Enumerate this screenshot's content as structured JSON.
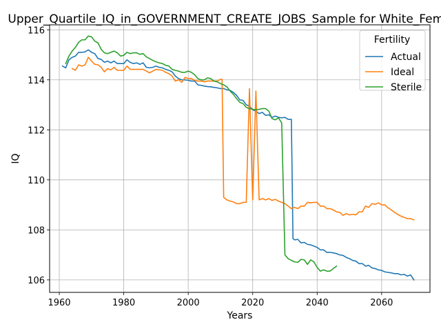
{
  "chart_data": {
    "type": "line",
    "title": "Upper_Quartile_IQ_in_GOVERNMENT_CREATE_JOBS_Sample for White_Females",
    "xlabel": "Years",
    "ylabel": "IQ",
    "xlim": [
      1957,
      2075
    ],
    "ylim": [
      105.5,
      116.2
    ],
    "xticks": [
      1960,
      1980,
      2000,
      2020,
      2040,
      2060
    ],
    "yticks": [
      106,
      108,
      110,
      112,
      114,
      116
    ],
    "grid": true,
    "legend": {
      "title": "Fertility",
      "position": "top-right"
    },
    "series": [
      {
        "name": "Actual",
        "color": "#1f77b4",
        "points": [
          [
            1961,
            114.55
          ],
          [
            1962,
            114.48
          ],
          [
            1963,
            114.8
          ],
          [
            1964,
            114.9
          ],
          [
            1965,
            114.95
          ],
          [
            1966,
            115.1
          ],
          [
            1967,
            115.1
          ],
          [
            1968,
            115.12
          ],
          [
            1969,
            115.2
          ],
          [
            1970,
            115.1
          ],
          [
            1971,
            115.05
          ],
          [
            1972,
            114.85
          ],
          [
            1973,
            114.82
          ],
          [
            1974,
            114.7
          ],
          [
            1975,
            114.75
          ],
          [
            1976,
            114.68
          ],
          [
            1977,
            114.75
          ],
          [
            1978,
            114.65
          ],
          [
            1979,
            114.65
          ],
          [
            1980,
            114.65
          ],
          [
            1981,
            114.8
          ],
          [
            1982,
            114.7
          ],
          [
            1983,
            114.65
          ],
          [
            1984,
            114.68
          ],
          [
            1985,
            114.62
          ],
          [
            1986,
            114.68
          ],
          [
            1987,
            114.5
          ],
          [
            1988,
            114.48
          ],
          [
            1989,
            114.5
          ],
          [
            1990,
            114.55
          ],
          [
            1991,
            114.5
          ],
          [
            1992,
            114.48
          ],
          [
            1993,
            114.42
          ],
          [
            1994,
            114.38
          ],
          [
            1995,
            114.32
          ],
          [
            1996,
            114.15
          ],
          [
            1997,
            114.05
          ],
          [
            1998,
            114.0
          ],
          [
            1999,
            114.0
          ],
          [
            2000,
            113.98
          ],
          [
            2001,
            113.95
          ],
          [
            2002,
            113.95
          ],
          [
            2003,
            113.8
          ],
          [
            2004,
            113.78
          ],
          [
            2005,
            113.75
          ],
          [
            2006,
            113.73
          ],
          [
            2007,
            113.72
          ],
          [
            2008,
            113.7
          ],
          [
            2009,
            113.68
          ],
          [
            2010,
            113.65
          ],
          [
            2011,
            113.65
          ],
          [
            2012,
            113.6
          ],
          [
            2013,
            113.58
          ],
          [
            2014,
            113.5
          ],
          [
            2015,
            113.38
          ],
          [
            2016,
            113.2
          ],
          [
            2017,
            113.18
          ],
          [
            2018,
            113.0
          ],
          [
            2019,
            112.95
          ],
          [
            2020,
            112.8
          ],
          [
            2021,
            112.75
          ],
          [
            2022,
            112.65
          ],
          [
            2023,
            112.7
          ],
          [
            2024,
            112.58
          ],
          [
            2025,
            112.6
          ],
          [
            2026,
            112.5
          ],
          [
            2027,
            112.55
          ],
          [
            2028,
            112.5
          ],
          [
            2029,
            112.48
          ],
          [
            2030,
            112.5
          ],
          [
            2031,
            112.42
          ],
          [
            2032,
            112.42
          ],
          [
            2032.5,
            107.65
          ],
          [
            2033,
            107.6
          ],
          [
            2034,
            107.62
          ],
          [
            2035,
            107.48
          ],
          [
            2036,
            107.5
          ],
          [
            2037,
            107.42
          ],
          [
            2038,
            107.4
          ],
          [
            2039,
            107.35
          ],
          [
            2040,
            107.3
          ],
          [
            2041,
            107.2
          ],
          [
            2042,
            107.2
          ],
          [
            2043,
            107.1
          ],
          [
            2044,
            107.1
          ],
          [
            2045,
            107.08
          ],
          [
            2046,
            107.05
          ],
          [
            2047,
            107.0
          ],
          [
            2048,
            106.98
          ],
          [
            2049,
            106.9
          ],
          [
            2050,
            106.85
          ],
          [
            2051,
            106.78
          ],
          [
            2052,
            106.75
          ],
          [
            2053,
            106.65
          ],
          [
            2054,
            106.65
          ],
          [
            2055,
            106.55
          ],
          [
            2056,
            106.58
          ],
          [
            2057,
            106.48
          ],
          [
            2058,
            106.45
          ],
          [
            2059,
            106.4
          ],
          [
            2060,
            106.38
          ],
          [
            2061,
            106.32
          ],
          [
            2062,
            106.3
          ],
          [
            2063,
            106.28
          ],
          [
            2064,
            106.25
          ],
          [
            2065,
            106.25
          ],
          [
            2066,
            106.2
          ],
          [
            2067,
            106.22
          ],
          [
            2068,
            106.15
          ],
          [
            2069,
            106.2
          ],
          [
            2070,
            106.0
          ]
        ]
      },
      {
        "name": "Ideal",
        "color": "#ff7f0e",
        "points": [
          [
            1964,
            114.45
          ],
          [
            1965,
            114.38
          ],
          [
            1966,
            114.6
          ],
          [
            1967,
            114.55
          ],
          [
            1968,
            114.6
          ],
          [
            1969,
            114.9
          ],
          [
            1970,
            114.75
          ],
          [
            1971,
            114.62
          ],
          [
            1972,
            114.6
          ],
          [
            1973,
            114.5
          ],
          [
            1974,
            114.32
          ],
          [
            1975,
            114.45
          ],
          [
            1976,
            114.4
          ],
          [
            1977,
            114.5
          ],
          [
            1978,
            114.38
          ],
          [
            1979,
            114.38
          ],
          [
            1980,
            114.38
          ],
          [
            1981,
            114.55
          ],
          [
            1982,
            114.42
          ],
          [
            1983,
            114.42
          ],
          [
            1984,
            114.42
          ],
          [
            1985,
            114.42
          ],
          [
            1986,
            114.42
          ],
          [
            1987,
            114.35
          ],
          [
            1988,
            114.28
          ],
          [
            1989,
            114.35
          ],
          [
            1990,
            114.42
          ],
          [
            1991,
            114.4
          ],
          [
            1992,
            114.38
          ],
          [
            1993,
            114.3
          ],
          [
            1994,
            114.25
          ],
          [
            1995,
            114.15
          ],
          [
            1996,
            113.95
          ],
          [
            1997,
            114.0
          ],
          [
            1998,
            113.9
          ],
          [
            1999,
            114.1
          ],
          [
            2000,
            114.05
          ],
          [
            2001,
            114.05
          ],
          [
            2002,
            113.98
          ],
          [
            2003,
            113.95
          ],
          [
            2004,
            113.95
          ],
          [
            2005,
            113.92
          ],
          [
            2006,
            113.95
          ],
          [
            2007,
            113.95
          ],
          [
            2008,
            113.95
          ],
          [
            2009,
            113.95
          ],
          [
            2010,
            114.02
          ],
          [
            2010.5,
            114.02
          ],
          [
            2011,
            109.3
          ],
          [
            2012,
            109.2
          ],
          [
            2013,
            109.15
          ],
          [
            2014,
            109.12
          ],
          [
            2015,
            109.05
          ],
          [
            2016,
            109.05
          ],
          [
            2017,
            109.1
          ],
          [
            2018,
            109.1
          ],
          [
            2019,
            113.65
          ],
          [
            2020,
            109.2
          ],
          [
            2021,
            113.55
          ],
          [
            2022,
            109.2
          ],
          [
            2023,
            109.25
          ],
          [
            2024,
            109.2
          ],
          [
            2025,
            109.25
          ],
          [
            2026,
            109.18
          ],
          [
            2027,
            109.22
          ],
          [
            2028,
            109.15
          ],
          [
            2029,
            109.1
          ],
          [
            2030,
            109.05
          ],
          [
            2031,
            108.95
          ],
          [
            2032,
            108.85
          ],
          [
            2033,
            108.9
          ],
          [
            2034,
            108.85
          ],
          [
            2035,
            108.95
          ],
          [
            2036,
            108.95
          ],
          [
            2037,
            109.1
          ],
          [
            2038,
            109.08
          ],
          [
            2039,
            109.1
          ],
          [
            2040,
            109.1
          ],
          [
            2041,
            108.95
          ],
          [
            2042,
            108.95
          ],
          [
            2043,
            108.85
          ],
          [
            2044,
            108.85
          ],
          [
            2045,
            108.8
          ],
          [
            2046,
            108.72
          ],
          [
            2047,
            108.7
          ],
          [
            2048,
            108.58
          ],
          [
            2049,
            108.65
          ],
          [
            2050,
            108.6
          ],
          [
            2051,
            108.62
          ],
          [
            2052,
            108.6
          ],
          [
            2053,
            108.72
          ],
          [
            2054,
            108.72
          ],
          [
            2055,
            108.95
          ],
          [
            2056,
            108.9
          ],
          [
            2057,
            109.05
          ],
          [
            2058,
            109.02
          ],
          [
            2059,
            109.08
          ],
          [
            2060,
            109.0
          ],
          [
            2061,
            109.0
          ],
          [
            2062,
            108.88
          ],
          [
            2063,
            108.8
          ],
          [
            2064,
            108.7
          ],
          [
            2065,
            108.62
          ],
          [
            2066,
            108.55
          ],
          [
            2067,
            108.5
          ],
          [
            2068,
            108.45
          ],
          [
            2069,
            108.45
          ],
          [
            2070,
            108.4
          ]
        ]
      },
      {
        "name": "Sterile",
        "color": "#2ca02c",
        "points": [
          [
            1962,
            114.65
          ],
          [
            1963,
            114.95
          ],
          [
            1964,
            115.15
          ],
          [
            1965,
            115.3
          ],
          [
            1966,
            115.5
          ],
          [
            1967,
            115.6
          ],
          [
            1968,
            115.6
          ],
          [
            1969,
            115.75
          ],
          [
            1970,
            115.72
          ],
          [
            1971,
            115.55
          ],
          [
            1972,
            115.48
          ],
          [
            1973,
            115.22
          ],
          [
            1974,
            115.08
          ],
          [
            1975,
            115.05
          ],
          [
            1976,
            115.1
          ],
          [
            1977,
            115.15
          ],
          [
            1978,
            115.08
          ],
          [
            1979,
            114.95
          ],
          [
            1980,
            114.98
          ],
          [
            1981,
            115.1
          ],
          [
            1982,
            115.05
          ],
          [
            1983,
            115.08
          ],
          [
            1984,
            115.08
          ],
          [
            1985,
            115.02
          ],
          [
            1986,
            115.05
          ],
          [
            1987,
            114.92
          ],
          [
            1988,
            114.85
          ],
          [
            1989,
            114.78
          ],
          [
            1990,
            114.72
          ],
          [
            1991,
            114.68
          ],
          [
            1992,
            114.65
          ],
          [
            1993,
            114.58
          ],
          [
            1994,
            114.55
          ],
          [
            1995,
            114.42
          ],
          [
            1996,
            114.38
          ],
          [
            1997,
            114.35
          ],
          [
            1998,
            114.3
          ],
          [
            1999,
            114.3
          ],
          [
            2000,
            114.35
          ],
          [
            2001,
            114.3
          ],
          [
            2002,
            114.2
          ],
          [
            2003,
            114.05
          ],
          [
            2004,
            114.0
          ],
          [
            2005,
            114.0
          ],
          [
            2006,
            114.08
          ],
          [
            2007,
            114.05
          ],
          [
            2008,
            113.95
          ],
          [
            2009,
            113.92
          ],
          [
            2010,
            113.85
          ],
          [
            2011,
            113.8
          ],
          [
            2012,
            113.72
          ],
          [
            2013,
            113.55
          ],
          [
            2014,
            113.42
          ],
          [
            2015,
            113.25
          ],
          [
            2016,
            113.1
          ],
          [
            2017,
            113.05
          ],
          [
            2018,
            112.9
          ],
          [
            2019,
            112.85
          ],
          [
            2020,
            112.82
          ],
          [
            2021,
            112.8
          ],
          [
            2022,
            112.82
          ],
          [
            2023,
            112.85
          ],
          [
            2024,
            112.85
          ],
          [
            2025,
            112.75
          ],
          [
            2026,
            112.45
          ],
          [
            2027,
            112.4
          ],
          [
            2028,
            112.48
          ],
          [
            2029,
            112.28
          ],
          [
            2030,
            107.0
          ],
          [
            2031,
            106.85
          ],
          [
            2032,
            106.78
          ],
          [
            2033,
            106.72
          ],
          [
            2034,
            106.7
          ],
          [
            2035,
            106.82
          ],
          [
            2036,
            106.8
          ],
          [
            2037,
            106.62
          ],
          [
            2038,
            106.8
          ],
          [
            2039,
            106.72
          ],
          [
            2040,
            106.5
          ],
          [
            2041,
            106.35
          ],
          [
            2042,
            106.4
          ],
          [
            2043,
            106.35
          ],
          [
            2044,
            106.35
          ],
          [
            2045,
            106.45
          ],
          [
            2046,
            106.55
          ]
        ]
      }
    ]
  }
}
